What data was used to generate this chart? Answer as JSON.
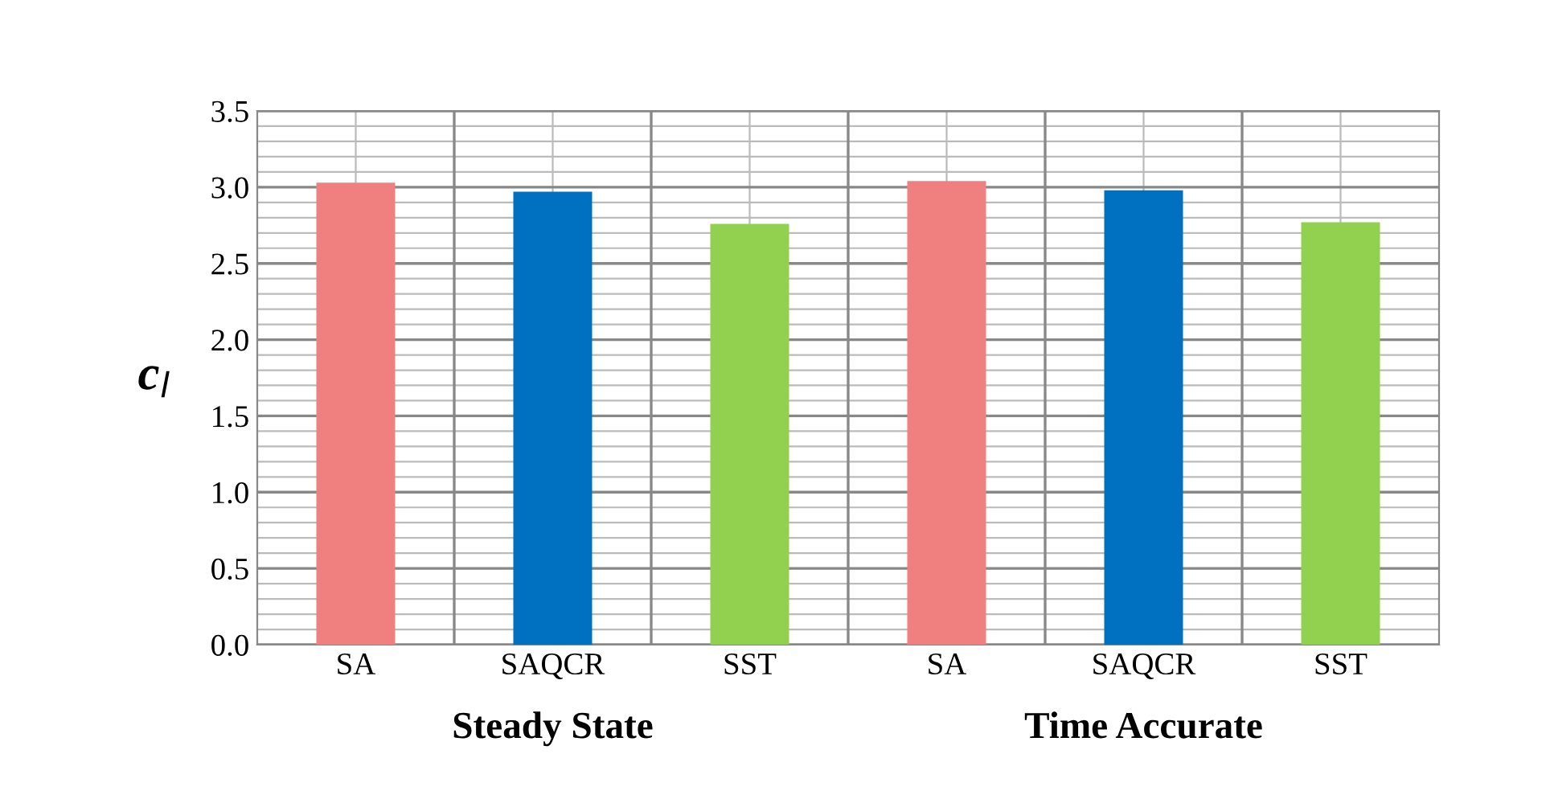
{
  "chart_data": {
    "type": "bar",
    "ylabel": "c$_{l}$",
    "categories": [
      "SA",
      "SAQCR",
      "SST",
      "SA",
      "SAQCR",
      "SST"
    ],
    "colors": [
      "#f08080",
      "#0070c0",
      "#92d050",
      "#f08080",
      "#0070c0",
      "#92d050"
    ],
    "values": [
      3.03,
      2.97,
      2.76,
      3.04,
      2.98,
      2.77
    ],
    "ylim": [
      0,
      3.5
    ],
    "yticks": [
      {
        "value": 0,
        "label": "0.0"
      },
      {
        "value": 0.5,
        "label": "0.5"
      },
      {
        "value": 1,
        "label": "1.0"
      },
      {
        "value": 1.5,
        "label": "1.5"
      },
      {
        "value": 2,
        "label": "2.0"
      },
      {
        "value": 2.5,
        "label": "2.5"
      },
      {
        "value": 3,
        "label": "3.0"
      },
      {
        "value": 3.5,
        "label": "3.5"
      }
    ],
    "grid": true,
    "annotations": [
      "Steady State",
      "Time Accurate"
    ]
  }
}
